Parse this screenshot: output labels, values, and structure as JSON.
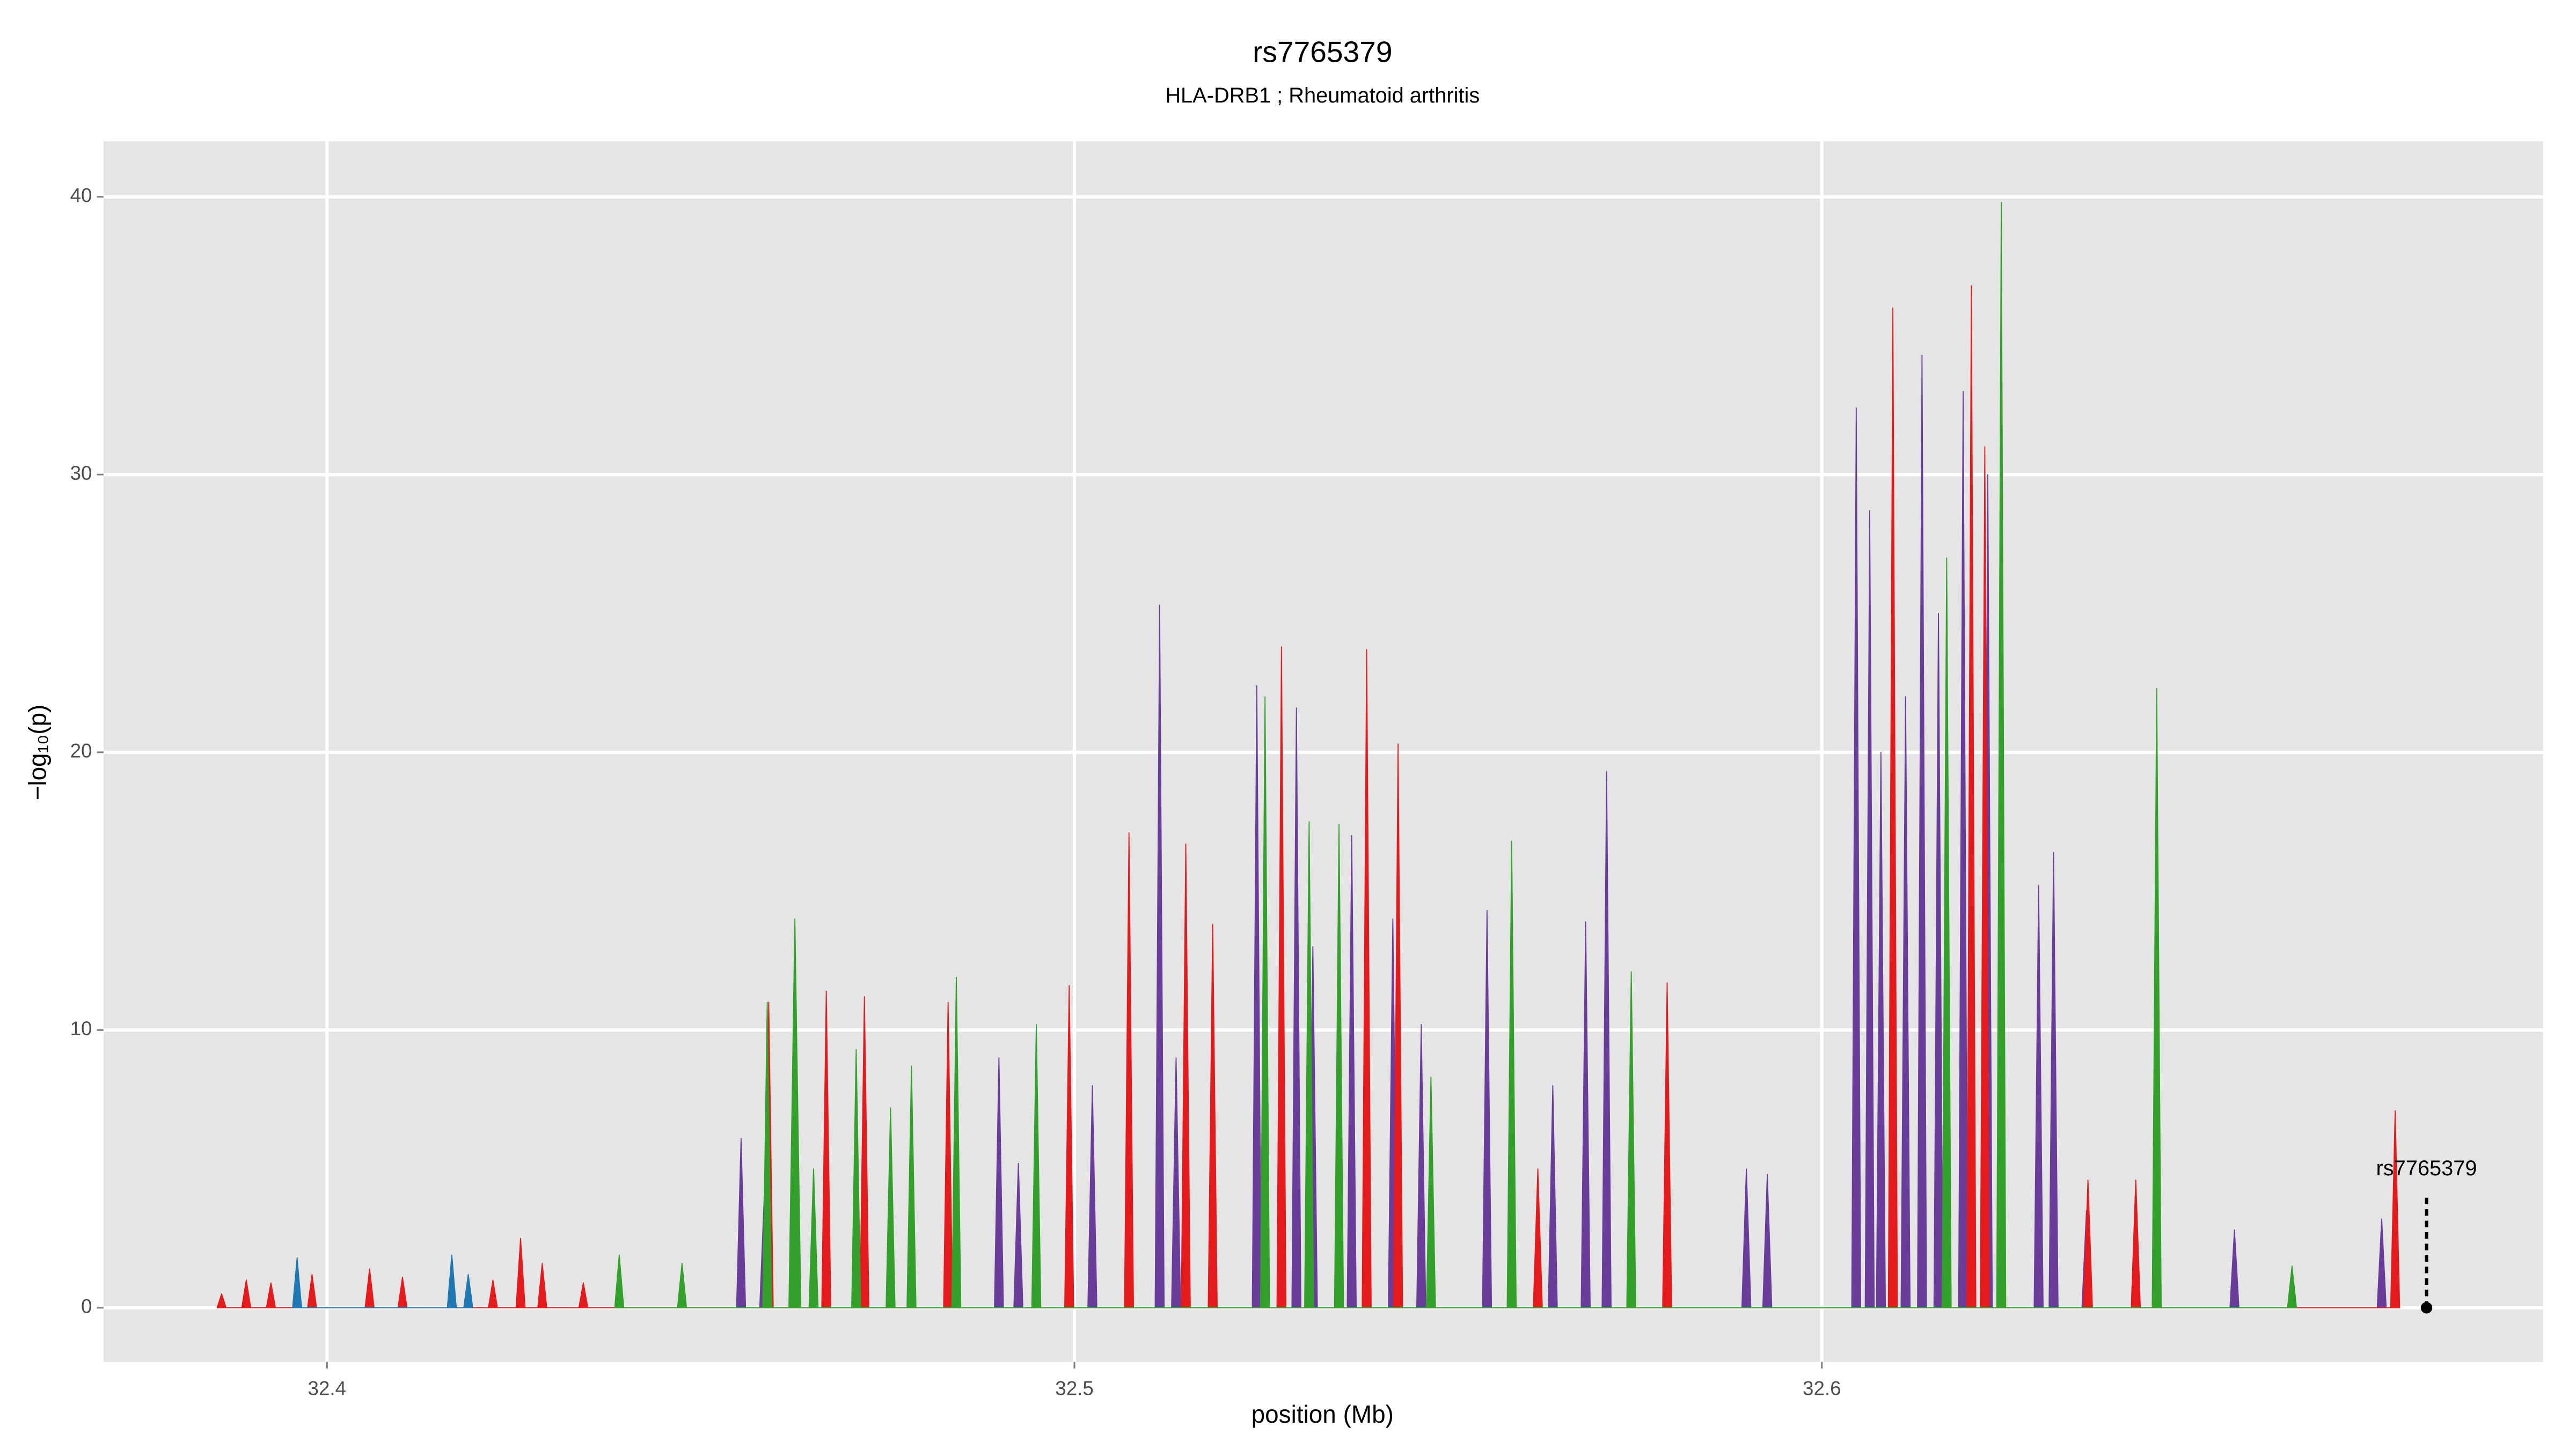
{
  "chart_data": {
    "type": "area",
    "title": "rs7765379",
    "subtitle": "HLA-DRB1 ; Rheumatoid arthritis",
    "xlabel": "position (Mb)",
    "ylabel": "−log₁₀(p)",
    "xlim": [
      32.3701,
      32.6965
    ],
    "ylim": [
      -1.95,
      42.0
    ],
    "xticks": [
      32.4,
      32.5,
      32.6
    ],
    "yticks": [
      0,
      10,
      20,
      30,
      40
    ],
    "grid": true,
    "series": [
      {
        "color": "#6a3d9a",
        "x": [
          32.4548,
          32.4554,
          32.456,
          32.4579,
          32.4585,
          32.4591,
          32.4893,
          32.4899,
          32.4905,
          32.4919,
          32.4925,
          32.4931,
          32.5018,
          32.5024,
          32.503,
          32.5108,
          32.5114,
          32.512,
          32.513,
          32.5136,
          32.5142,
          32.5238,
          32.5244,
          32.525,
          32.5291,
          32.5297,
          32.5303,
          32.5313,
          32.5319,
          32.5325,
          32.5365,
          32.5371,
          32.5377,
          32.542,
          32.5426,
          32.5432,
          32.5458,
          32.5464,
          32.547,
          32.5546,
          32.5552,
          32.5558,
          32.5634,
          32.564,
          32.5646,
          32.5678,
          32.5684,
          32.569,
          32.5706,
          32.5712,
          32.5718,
          32.5893,
          32.5899,
          32.5905,
          32.5921,
          32.5927,
          32.5933,
          32.604,
          32.6046,
          32.6052,
          32.6058,
          32.6064,
          32.607,
          32.6073,
          32.6079,
          32.6085,
          32.6106,
          32.6112,
          32.6118,
          32.6128,
          32.6134,
          32.614,
          32.615,
          32.6156,
          32.6162,
          32.6183,
          32.6189,
          32.6195,
          32.6216,
          32.6222,
          32.6228,
          32.6284,
          32.629,
          32.6296,
          32.6304,
          32.631,
          32.6316,
          32.6348,
          32.6354,
          32.636,
          32.6414,
          32.642,
          32.6426,
          32.6546,
          32.6552,
          32.6558,
          32.6743,
          32.6749,
          32.6755
        ],
        "values": [
          0,
          6.1,
          0,
          0,
          4.0,
          0,
          0,
          9.0,
          0,
          0,
          5.2,
          0,
          0,
          8.0,
          0,
          0,
          25.3,
          0,
          0,
          9.0,
          0,
          0,
          22.4,
          0,
          0,
          21.6,
          0,
          0,
          13.0,
          0,
          0,
          17.0,
          0,
          0,
          14.0,
          0,
          0,
          10.2,
          0,
          0,
          14.3,
          0,
          0,
          8.0,
          0,
          0,
          13.9,
          0,
          0,
          19.3,
          0,
          0,
          5.0,
          0,
          0,
          4.8,
          0,
          0,
          32.4,
          0,
          0,
          28.7,
          0,
          0,
          20.0,
          0,
          0,
          22.0,
          0,
          0,
          34.3,
          0,
          0,
          25.0,
          0,
          0,
          33.0,
          0,
          0,
          30.0,
          0,
          0,
          15.2,
          0,
          0,
          16.4,
          0,
          0,
          3.5,
          0,
          0,
          4.5,
          0,
          0,
          2.8,
          0,
          0,
          3.2,
          0
        ]
      },
      {
        "color": "#e41a1c",
        "x": [
          32.3853,
          32.3859,
          32.3865,
          32.3886,
          32.3892,
          32.3898,
          32.3919,
          32.3925,
          32.3931,
          32.3974,
          32.398,
          32.3986,
          32.4051,
          32.4057,
          32.4063,
          32.4095,
          32.4101,
          32.4107,
          32.4216,
          32.4222,
          32.4228,
          32.4253,
          32.4259,
          32.4265,
          32.4282,
          32.4288,
          32.4294,
          32.4337,
          32.4343,
          32.4349,
          32.4585,
          32.4591,
          32.4597,
          32.4662,
          32.4668,
          32.4674,
          32.4713,
          32.4719,
          32.4725,
          32.4825,
          32.4831,
          32.4837,
          32.4987,
          32.4993,
          32.4999,
          32.5067,
          32.5073,
          32.5079,
          32.5143,
          32.5149,
          32.5155,
          32.5179,
          32.5185,
          32.5191,
          32.5271,
          32.5277,
          32.5283,
          32.5385,
          32.5391,
          32.5397,
          32.5427,
          32.5433,
          32.5439,
          32.5614,
          32.562,
          32.5626,
          32.5787,
          32.5793,
          32.5799,
          32.6089,
          32.6095,
          32.6101,
          32.6194,
          32.62,
          32.6206,
          32.6212,
          32.6218,
          32.6224,
          32.635,
          32.6356,
          32.6362,
          32.6414,
          32.642,
          32.6426,
          32.6761,
          32.6767,
          32.6773
        ],
        "values": [
          0,
          0.5,
          0,
          0,
          1.0,
          0,
          0,
          0.9,
          0,
          0,
          1.2,
          0,
          0,
          1.4,
          0,
          0,
          1.1,
          0,
          0,
          1.0,
          0,
          0,
          2.5,
          0,
          0,
          1.6,
          0,
          0,
          0.9,
          0,
          0,
          11.0,
          0,
          0,
          11.4,
          0,
          0,
          11.2,
          0,
          0,
          11.0,
          0,
          0,
          11.6,
          0,
          0,
          17.1,
          0,
          0,
          16.7,
          0,
          0,
          13.8,
          0,
          0,
          23.8,
          0,
          0,
          23.7,
          0,
          0,
          20.3,
          0,
          0,
          5.0,
          0,
          0,
          11.7,
          0,
          0,
          36.0,
          0,
          0,
          36.8,
          0,
          0,
          31.0,
          0,
          0,
          4.6,
          0,
          0,
          4.6,
          0,
          0,
          7.1,
          0
        ]
      },
      {
        "color": "#33a02c",
        "x": [
          32.4385,
          32.4391,
          32.4397,
          32.4469,
          32.4475,
          32.4481,
          32.4583,
          32.4589,
          32.4595,
          32.4618,
          32.4626,
          32.4634,
          32.4645,
          32.4651,
          32.4657,
          32.4702,
          32.4708,
          32.4714,
          32.4748,
          32.4754,
          32.476,
          32.4776,
          32.4782,
          32.4788,
          32.4836,
          32.4842,
          32.4848,
          32.4943,
          32.4949,
          32.4955,
          32.5249,
          32.5255,
          32.5261,
          32.5308,
          32.5314,
          32.532,
          32.5348,
          32.5354,
          32.536,
          32.5471,
          32.5477,
          32.5483,
          32.5579,
          32.5585,
          32.5591,
          32.5739,
          32.5745,
          32.5751,
          32.6161,
          32.6167,
          32.6173,
          32.6234,
          32.624,
          32.6246,
          32.6442,
          32.6448,
          32.6454,
          32.6623,
          32.6629,
          32.6635
        ],
        "values": [
          0,
          1.9,
          0,
          0,
          1.6,
          0,
          0,
          11.0,
          0,
          0,
          14.0,
          0,
          0,
          5.0,
          0,
          0,
          9.3,
          0,
          0,
          7.2,
          0,
          0,
          8.7,
          0,
          0,
          11.9,
          0,
          0,
          10.2,
          0,
          0,
          22.0,
          0,
          0,
          17.5,
          0,
          0,
          17.4,
          0,
          0,
          8.3,
          0,
          0,
          16.8,
          0,
          0,
          12.1,
          0,
          0,
          27.0,
          0,
          0,
          39.8,
          0,
          0,
          22.3,
          0,
          0,
          1.5,
          0
        ]
      },
      {
        "color": "#1f78b4",
        "x": [
          32.3954,
          32.396,
          32.3966,
          32.4161,
          32.4167,
          32.4173,
          32.4183,
          32.4189,
          32.4195
        ],
        "values": [
          0,
          1.8,
          0,
          0,
          1.9,
          0,
          0,
          1.2,
          0
        ]
      }
    ],
    "annotation": {
      "text": "rs7765379",
      "x": 32.6809,
      "y": 0
    }
  }
}
